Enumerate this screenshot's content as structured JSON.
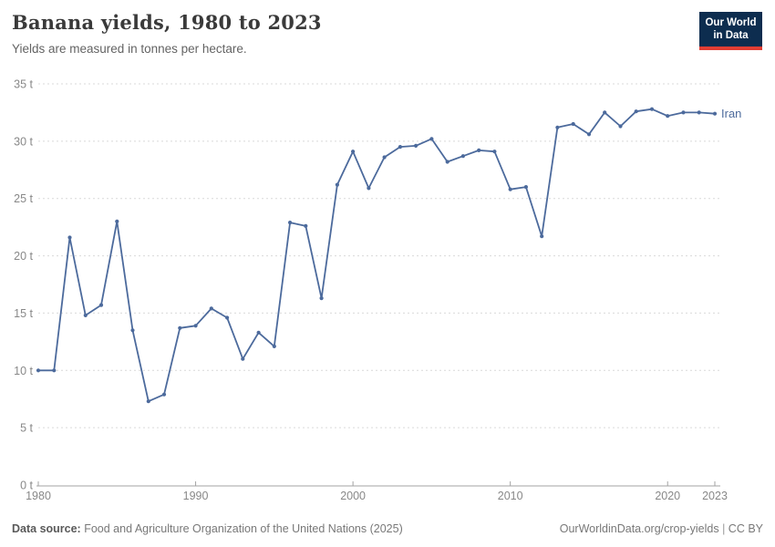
{
  "header": {
    "title": "Banana yields, 1980 to 2023",
    "subtitle": "Yields are measured in tonnes per hectare.",
    "logo": {
      "line1": "Our World",
      "line2": "in Data"
    }
  },
  "chart_data": {
    "type": "line",
    "title": "Banana yields, 1980 to 2023",
    "ylabel": "tonnes per hectare",
    "x": [
      1980,
      1981,
      1982,
      1983,
      1984,
      1985,
      1986,
      1987,
      1988,
      1989,
      1990,
      1991,
      1992,
      1993,
      1994,
      1995,
      1996,
      1997,
      1998,
      1999,
      2000,
      2001,
      2002,
      2003,
      2004,
      2005,
      2006,
      2007,
      2008,
      2009,
      2010,
      2011,
      2012,
      2013,
      2014,
      2015,
      2016,
      2017,
      2018,
      2019,
      2020,
      2021,
      2022,
      2023
    ],
    "series": [
      {
        "name": "Iran",
        "color": "#4c6a9c",
        "values": [
          10.0,
          10.0,
          21.6,
          14.8,
          15.7,
          23.0,
          13.5,
          7.3,
          7.9,
          13.7,
          13.9,
          15.4,
          14.6,
          11.0,
          13.3,
          12.1,
          22.9,
          22.6,
          16.3,
          26.2,
          29.1,
          25.9,
          28.6,
          29.5,
          29.6,
          30.2,
          28.2,
          28.7,
          29.2,
          29.1,
          25.8,
          26.0,
          21.7,
          31.2,
          31.5,
          30.6,
          32.5,
          31.3,
          32.6,
          32.8,
          32.2,
          32.5,
          32.5,
          32.4
        ]
      }
    ],
    "xlim": [
      1980,
      2023
    ],
    "ylim": [
      0,
      35
    ],
    "yticks": [
      0,
      5,
      10,
      15,
      20,
      25,
      30,
      35
    ],
    "ytick_suffix": " t",
    "xticks": [
      1980,
      1990,
      2000,
      2010,
      2020,
      2023
    ],
    "grid": "horizontal dashed",
    "legend_position": "end-of-line label"
  },
  "colors": {
    "line": "#4c6a9c",
    "gridline": "#d9d9d9",
    "axis": "#a3a3a3",
    "tick_label": "#888888",
    "logo_bg": "#0d2d4f",
    "logo_accent": "#e23d33"
  },
  "footer": {
    "source_label": "Data source:",
    "source_text": "Food and Agriculture Organization of the United Nations (2025)",
    "link_text": "OurWorldinData.org/crop-yields",
    "separator": "|",
    "license_text": "CC BY"
  }
}
